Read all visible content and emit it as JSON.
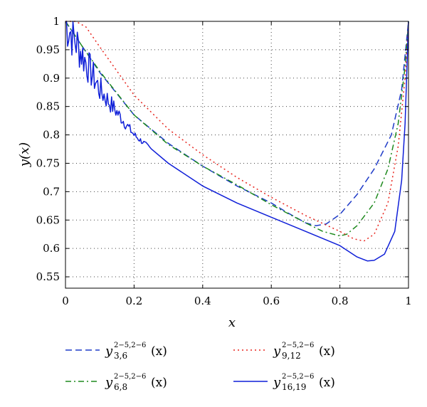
{
  "chart_data": {
    "type": "line",
    "xlabel": "x",
    "ylabel": "y(x)",
    "xlim": [
      0,
      1
    ],
    "ylim": [
      0.53,
      1.0
    ],
    "x_ticks": [
      "0",
      "0.2",
      "0.4",
      "0.6",
      "0.8",
      "1"
    ],
    "y_ticks": [
      "0.55",
      "0.6",
      "0.65",
      "0.7",
      "0.75",
      "0.8",
      "0.85",
      "0.9",
      "0.95",
      "1"
    ],
    "grid": true,
    "legend_position": "below",
    "series": [
      {
        "legend": {
          "base": "y",
          "sup": "2−5,2−6",
          "sub": "3,6",
          "tail": "(x)"
        },
        "color": "#1f3bc8",
        "dash": "dashed",
        "x": [
          0,
          0.05,
          0.1,
          0.2,
          0.3,
          0.4,
          0.5,
          0.6,
          0.65,
          0.7,
          0.73,
          0.76,
          0.8,
          0.85,
          0.9,
          0.95,
          0.98,
          1.0
        ],
        "y": [
          1.0,
          0.955,
          0.91,
          0.835,
          0.785,
          0.745,
          0.71,
          0.68,
          0.662,
          0.645,
          0.64,
          0.643,
          0.66,
          0.695,
          0.74,
          0.8,
          0.88,
          1.0
        ]
      },
      {
        "legend": {
          "base": "y",
          "sup": "2−5,2−6",
          "sub": "6,8",
          "tail": "(x)"
        },
        "color": "#1e8a1e",
        "dash": "dashdot",
        "x": [
          0,
          0.05,
          0.1,
          0.2,
          0.3,
          0.4,
          0.5,
          0.6,
          0.7,
          0.75,
          0.8,
          0.82,
          0.85,
          0.9,
          0.94,
          0.97,
          0.99,
          1.0
        ],
        "y": [
          1.0,
          0.955,
          0.912,
          0.835,
          0.783,
          0.745,
          0.712,
          0.677,
          0.645,
          0.63,
          0.622,
          0.625,
          0.64,
          0.68,
          0.74,
          0.82,
          0.92,
          1.0
        ]
      },
      {
        "legend": {
          "base": "y",
          "sup": "2−5,2−6",
          "sub": "9,12",
          "tail": "(x)"
        },
        "color": "#e8251e",
        "dash": "dotted",
        "x": [
          0,
          0.03,
          0.06,
          0.1,
          0.2,
          0.3,
          0.4,
          0.5,
          0.6,
          0.7,
          0.8,
          0.84,
          0.87,
          0.9,
          0.94,
          0.97,
          0.99,
          1.0
        ],
        "y": [
          1.0,
          1.0,
          0.99,
          0.955,
          0.87,
          0.81,
          0.765,
          0.725,
          0.69,
          0.658,
          0.63,
          0.617,
          0.613,
          0.625,
          0.68,
          0.78,
          0.9,
          1.0
        ]
      },
      {
        "legend": {
          "base": "y",
          "sup": "2−5,2−6",
          "sub": "16,19",
          "tail": "(x)"
        },
        "color": "#0f1fd8",
        "dash": "solid",
        "x": [
          0,
          0.1,
          0.2,
          0.3,
          0.4,
          0.5,
          0.6,
          0.7,
          0.8,
          0.85,
          0.88,
          0.9,
          0.93,
          0.96,
          0.98,
          0.99,
          1.0
        ],
        "y": [
          1.0,
          0.88,
          0.8,
          0.75,
          0.71,
          0.68,
          0.655,
          0.63,
          0.605,
          0.585,
          0.578,
          0.579,
          0.59,
          0.63,
          0.72,
          0.82,
          1.0
        ],
        "noise_until_x": 0.25
      }
    ]
  }
}
